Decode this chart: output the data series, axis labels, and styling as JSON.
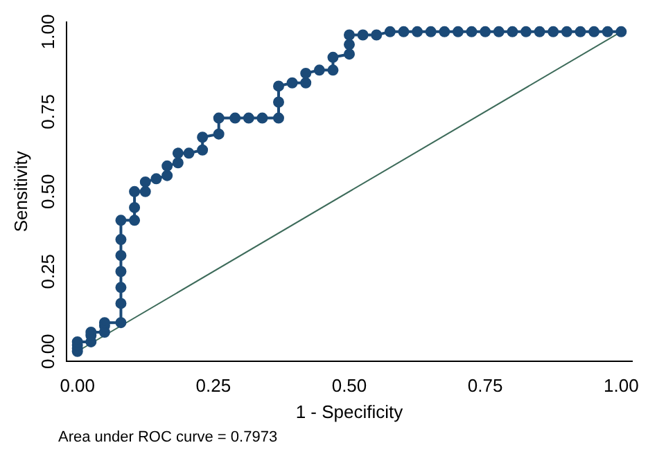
{
  "chart_data": {
    "type": "line",
    "xlabel": "1 - Specificity",
    "ylabel": "Sensitivity",
    "xlim": [
      -0.02,
      1.02
    ],
    "ylim": [
      -0.03,
      1.03
    ],
    "xticks": [
      {
        "value": 0,
        "label": "0.00"
      },
      {
        "value": 0.25,
        "label": "0.25"
      },
      {
        "value": 0.5,
        "label": "0.50"
      },
      {
        "value": 0.75,
        "label": "0.75"
      },
      {
        "value": 1,
        "label": "1.00"
      }
    ],
    "yticks": [
      {
        "value": 0,
        "label": "0.00"
      },
      {
        "value": 0.25,
        "label": "0.25"
      },
      {
        "value": 0.5,
        "label": "0.50"
      },
      {
        "value": 0.75,
        "label": "0.75"
      },
      {
        "value": 1,
        "label": "1.00"
      }
    ],
    "grid": false,
    "legend": false,
    "marker": "circle",
    "line_style": "solid",
    "annotations": [
      "Area under ROC curve = 0.7973"
    ],
    "series": [
      {
        "color": "#1b4a78",
        "x": [
          0,
          0,
          0,
          0,
          0.025,
          0.025,
          0.025,
          0.05,
          0.05,
          0.05,
          0.08,
          0.08,
          0.08,
          0.08,
          0.08,
          0.08,
          0.08,
          0.105,
          0.105,
          0.105,
          0.125,
          0.125,
          0.145,
          0.165,
          0.165,
          0.185,
          0.185,
          0.205,
          0.23,
          0.23,
          0.26,
          0.26,
          0.29,
          0.315,
          0.34,
          0.37,
          0.37,
          0.37,
          0.395,
          0.42,
          0.42,
          0.445,
          0.47,
          0.47,
          0.5,
          0.5,
          0.5,
          0.525,
          0.55,
          0.575,
          0.6,
          0.625,
          0.65,
          0.675,
          0.7,
          0.725,
          0.75,
          0.775,
          0.8,
          0.825,
          0.85,
          0.875,
          0.9,
          0.925,
          0.95,
          0.975,
          1
        ],
        "values": [
          0,
          0.01,
          0.02,
          0.03,
          0.03,
          0.05,
          0.06,
          0.06,
          0.08,
          0.09,
          0.09,
          0.15,
          0.2,
          0.25,
          0.3,
          0.35,
          0.41,
          0.41,
          0.45,
          0.5,
          0.5,
          0.53,
          0.54,
          0.55,
          0.58,
          0.59,
          0.62,
          0.62,
          0.63,
          0.67,
          0.68,
          0.73,
          0.73,
          0.73,
          0.73,
          0.73,
          0.78,
          0.83,
          0.84,
          0.84,
          0.87,
          0.88,
          0.88,
          0.92,
          0.93,
          0.96,
          0.99,
          0.99,
          0.99,
          1,
          1,
          1,
          1,
          1,
          1,
          1,
          1,
          1,
          1,
          1,
          1,
          1,
          1,
          1,
          1,
          1,
          1
        ]
      },
      {
        "color": "#3d6b5a",
        "marker": "none",
        "x": [
          0,
          1
        ],
        "values": [
          0,
          1
        ]
      }
    ]
  }
}
